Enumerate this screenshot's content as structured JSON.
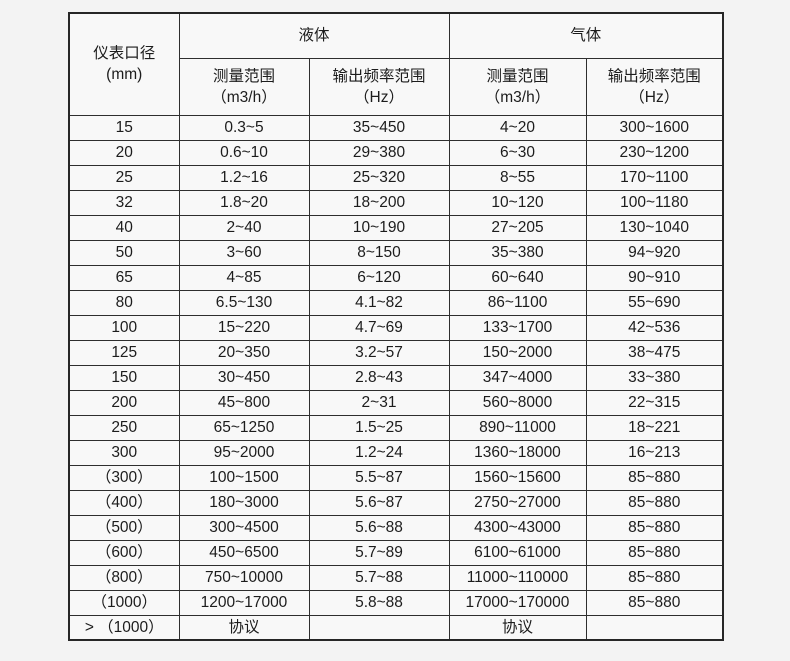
{
  "page": {
    "background": "#f3f3f3"
  },
  "colors": {
    "border": "#2e2e2e",
    "outer_border": "#262626",
    "text": "#1c1c1c",
    "cell_bg": "#f8f8f8"
  },
  "chart_data": {
    "type": "table",
    "title": "",
    "header": {
      "diameter_line1": "仪表口径",
      "diameter_line2": "(mm)",
      "liquid_group": "液体",
      "gas_group": "气体",
      "measure_range_line1": "测量范围",
      "measure_range_line2": "（m3/h）",
      "freq_range_line1": "输出频率范围",
      "freq_range_line2": "（Hz）"
    },
    "columns": [
      "仪表口径(mm)",
      "液体 测量范围（m3/h）",
      "液体 输出频率范围（Hz）",
      "气体 测量范围（m3/h）",
      "气体 输出频率范围（Hz）"
    ],
    "rows": [
      {
        "cells": [
          "15",
          "0.3~5",
          "35~450",
          "4~20",
          "300~1600"
        ]
      },
      {
        "cells": [
          "20",
          "0.6~10",
          "29~380",
          "6~30",
          "230~1200"
        ]
      },
      {
        "cells": [
          "25",
          "1.2~16",
          "25~320",
          "8~55",
          "170~1100"
        ]
      },
      {
        "cells": [
          "32",
          "1.8~20",
          "18~200",
          "10~120",
          "100~1180"
        ]
      },
      {
        "cells": [
          "40",
          "2~40",
          "10~190",
          "27~205",
          "130~1040"
        ]
      },
      {
        "cells": [
          "50",
          "3~60",
          "8~150",
          "35~380",
          "94~920"
        ]
      },
      {
        "cells": [
          "65",
          "4~85",
          "6~120",
          "60~640",
          "90~910"
        ]
      },
      {
        "cells": [
          "80",
          "6.5~130",
          "4.1~82",
          "86~1100",
          "55~690"
        ]
      },
      {
        "cells": [
          "100",
          "15~220",
          "4.7~69",
          "133~1700",
          "42~536"
        ]
      },
      {
        "cells": [
          "125",
          "20~350",
          "3.2~57",
          "150~2000",
          "38~475"
        ]
      },
      {
        "cells": [
          "150",
          "30~450",
          "2.8~43",
          "347~4000",
          "33~380"
        ]
      },
      {
        "cells": [
          "200",
          "45~800",
          "2~31",
          "560~8000",
          "22~315"
        ]
      },
      {
        "cells": [
          "250",
          "65~1250",
          "1.5~25",
          "890~11000",
          "18~221"
        ]
      },
      {
        "cells": [
          "300",
          "95~2000",
          "1.2~24",
          "1360~18000",
          "16~213"
        ]
      },
      {
        "cells": [
          "（300）",
          "100~1500",
          "5.5~87",
          "1560~15600",
          "85~880"
        ]
      },
      {
        "cells": [
          "（400）",
          "180~3000",
          "5.6~87",
          "2750~27000",
          "85~880"
        ]
      },
      {
        "cells": [
          "（500）",
          "300~4500",
          "5.6~88",
          "4300~43000",
          "85~880"
        ]
      },
      {
        "cells": [
          "（600）",
          "450~6500",
          "5.7~89",
          "6100~61000",
          "85~880"
        ]
      },
      {
        "cells": [
          "（800）",
          "750~10000",
          "5.7~88",
          "11000~110000",
          "85~880"
        ]
      },
      {
        "cells": [
          "（1000）",
          "1200~17000",
          "5.8~88",
          "17000~170000",
          "85~880"
        ]
      },
      {
        "cells": [
          "> （1000）",
          "协议",
          "",
          "协议",
          ""
        ],
        "dn_align": "left"
      }
    ]
  }
}
